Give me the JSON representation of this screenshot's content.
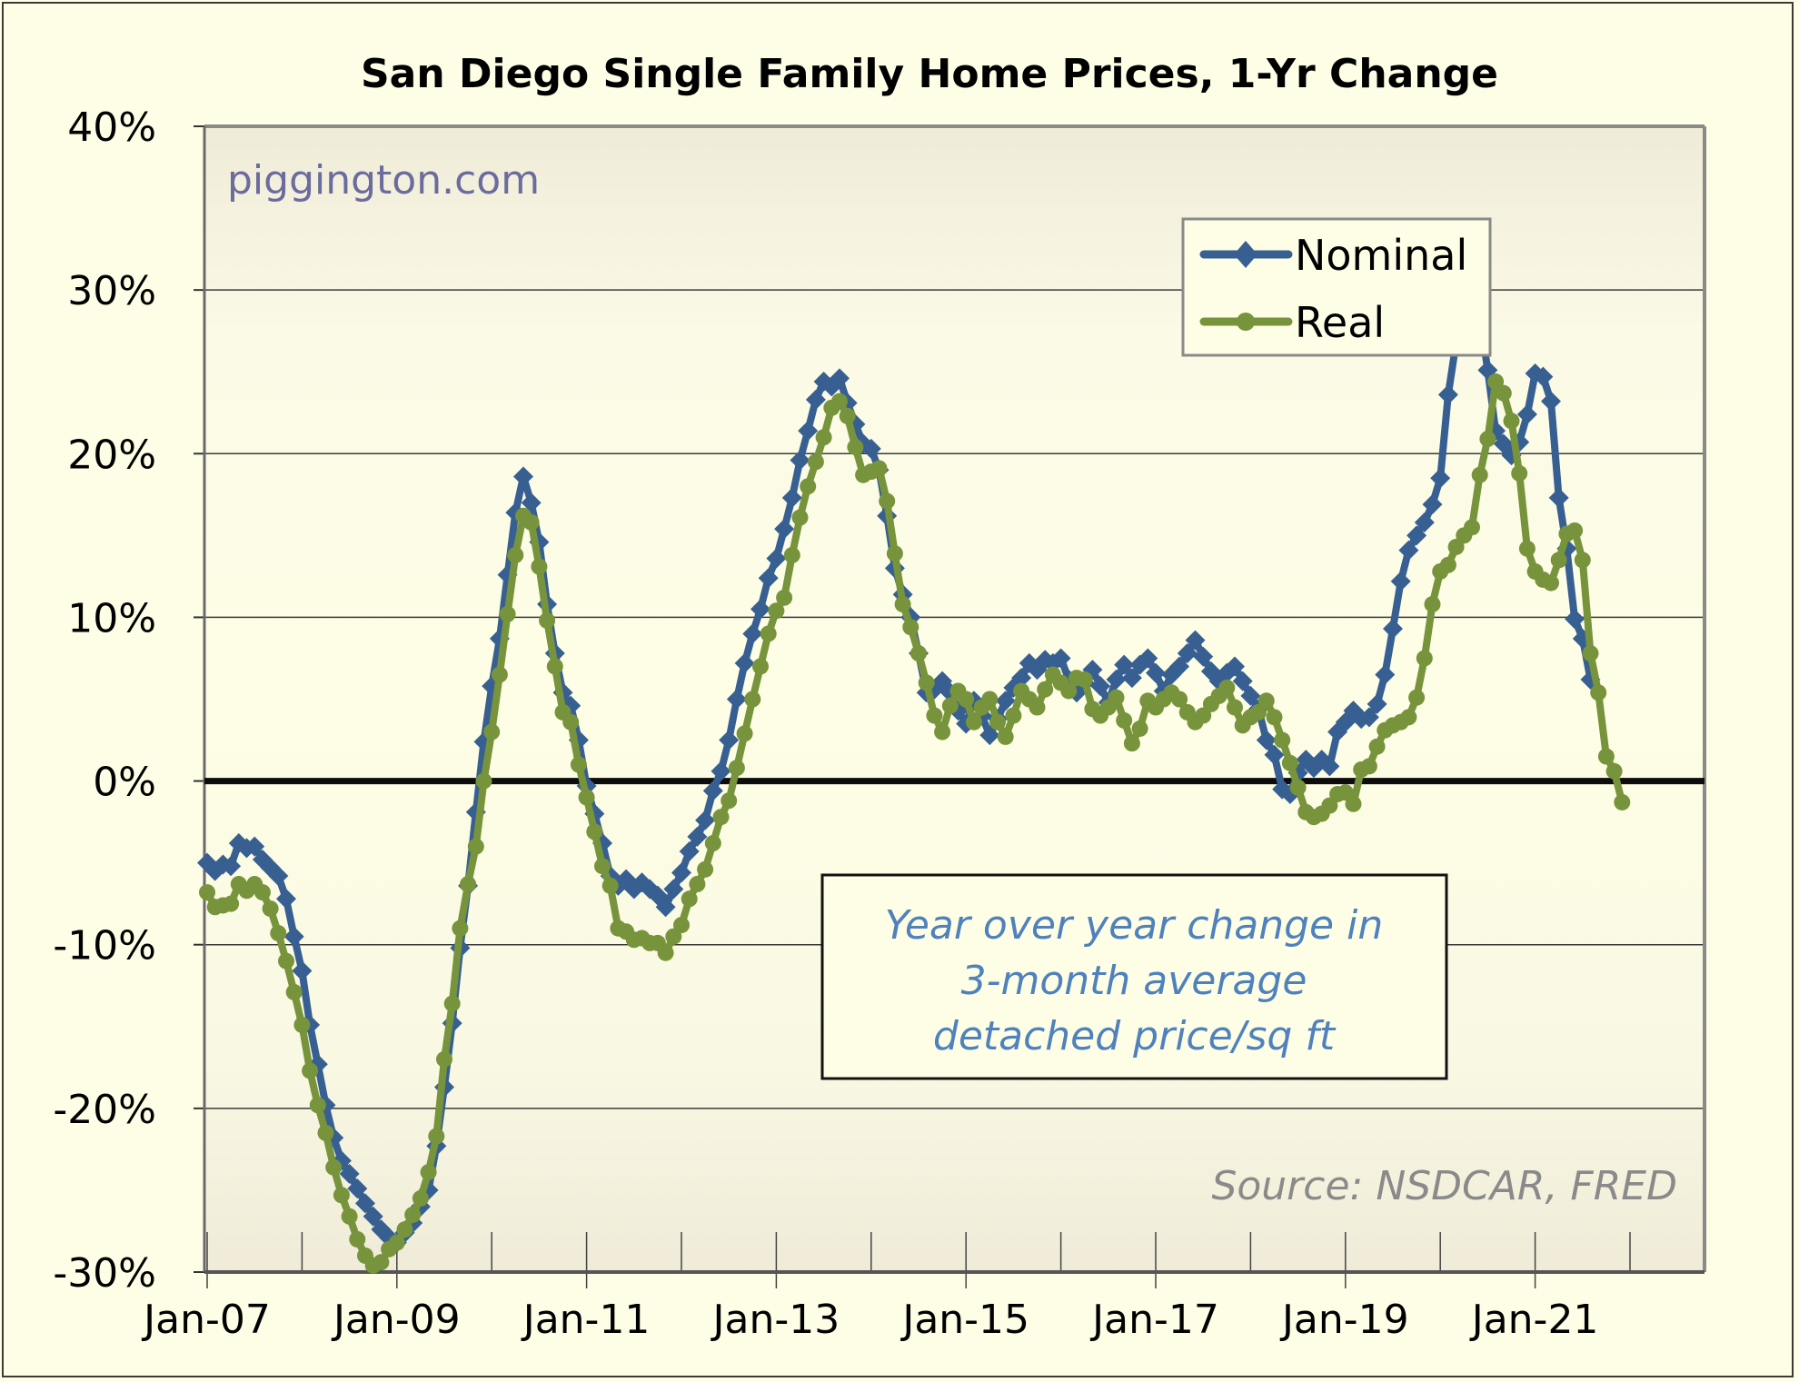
{
  "chart_data": {
    "type": "line",
    "title": "San Diego Single Family Home Prices, 1-Yr Change",
    "xlabel": "",
    "ylabel": "",
    "ylim": [
      -30,
      40
    ],
    "yticks": [
      -30,
      -20,
      -10,
      0,
      10,
      20,
      30,
      40
    ],
    "ytick_labels": [
      "-30%",
      "-20%",
      "-10%",
      "0%",
      "10%",
      "20%",
      "30%",
      "40%"
    ],
    "x_start": "Jan-07",
    "x_frequency": "monthly",
    "x_count": 190,
    "xtick_labels": [
      "Jan-07",
      "Jan-09",
      "Jan-11",
      "Jan-13",
      "Jan-15",
      "Jan-17",
      "Jan-19",
      "Jan-21"
    ],
    "xtick_month_index": [
      0,
      24,
      48,
      72,
      96,
      120,
      144,
      168
    ],
    "grid": "horizontal",
    "zero_line": true,
    "legend_position": "top-right",
    "series": [
      {
        "name": "Nominal",
        "color": "#375f91",
        "marker": "diamond",
        "values": [
          -5.0,
          -5.5,
          -5.1,
          -5.2,
          -3.8,
          -4.1,
          -4.0,
          -4.8,
          -5.3,
          -5.8,
          -7.2,
          -9.5,
          -11.6,
          -14.9,
          -17.3,
          -19.8,
          -21.8,
          -23.2,
          -24.0,
          -24.9,
          -25.8,
          -26.6,
          -27.4,
          -27.9,
          -28.2,
          -27.6,
          -27.0,
          -26.0,
          -25.0,
          -22.3,
          -18.7,
          -14.8,
          -10.2,
          -6.4,
          -1.9,
          2.4,
          5.8,
          8.7,
          12.6,
          16.4,
          18.6,
          17.0,
          14.6,
          10.8,
          7.8,
          5.4,
          4.6,
          2.5,
          -0.3,
          -2.0,
          -3.8,
          -5.8,
          -6.4,
          -6.0,
          -6.6,
          -6.2,
          -6.6,
          -7.0,
          -7.7,
          -6.6,
          -5.6,
          -4.3,
          -3.4,
          -2.4,
          -0.6,
          0.6,
          2.5,
          5.0,
          7.2,
          9.0,
          10.5,
          12.4,
          13.6,
          15.4,
          17.3,
          19.6,
          21.4,
          23.3,
          24.4,
          24.1,
          24.6,
          23.1,
          21.8,
          20.6,
          20.3,
          19.0,
          16.2,
          13.0,
          11.4,
          10.0,
          7.8,
          5.4,
          5.6,
          6.1,
          5.4,
          4.3,
          3.5,
          4.9,
          4.0,
          2.8,
          3.8,
          4.9,
          5.7,
          6.3,
          7.2,
          6.8,
          7.4,
          7.2,
          7.5,
          6.2,
          5.4,
          6.0,
          6.8,
          5.8,
          4.8,
          6.2,
          7.1,
          6.3,
          7.1,
          7.5,
          6.6,
          5.5,
          6.5,
          7.0,
          7.8,
          8.6,
          7.6,
          6.7,
          6.1,
          6.6,
          7.0,
          6.1,
          5.2,
          4.4,
          2.5,
          1.6,
          -0.5,
          -0.8,
          0.5,
          1.3,
          0.8,
          1.3,
          0.9,
          3.0,
          3.6,
          4.3,
          3.8,
          3.9,
          4.7,
          6.5,
          9.3,
          12.2,
          14.1,
          15.0,
          15.8,
          16.9,
          18.5,
          23.6,
          26.8,
          30.9,
          30.2,
          28.4,
          25.1,
          21.4,
          20.6,
          19.9,
          20.7,
          22.4,
          24.9,
          24.7,
          23.2,
          17.3,
          14.2,
          9.9,
          8.7,
          6.2
        ]
      },
      {
        "name": "Real",
        "color": "#77933c",
        "marker": "circle",
        "values": [
          -6.8,
          -7.7,
          -7.6,
          -7.5,
          -6.3,
          -6.7,
          -6.3,
          -6.8,
          -7.8,
          -9.3,
          -11.0,
          -12.9,
          -14.9,
          -17.7,
          -19.8,
          -21.5,
          -23.6,
          -25.3,
          -26.6,
          -28.0,
          -29.0,
          -29.6,
          -29.4,
          -28.6,
          -28.2,
          -27.4,
          -26.5,
          -25.5,
          -23.9,
          -21.7,
          -17.0,
          -13.6,
          -9.0,
          -6.3,
          -4.0,
          0.0,
          3.0,
          6.5,
          10.2,
          13.8,
          16.2,
          15.8,
          13.1,
          9.8,
          7.0,
          4.2,
          3.6,
          1.0,
          -1.0,
          -3.1,
          -5.2,
          -6.4,
          -9.0,
          -9.2,
          -9.7,
          -9.6,
          -9.9,
          -9.9,
          -10.5,
          -9.5,
          -8.8,
          -7.2,
          -6.3,
          -5.4,
          -3.8,
          -2.2,
          -1.2,
          0.8,
          2.9,
          5.0,
          7.0,
          9.0,
          10.4,
          11.2,
          13.8,
          16.1,
          18.0,
          19.5,
          21.0,
          22.8,
          23.2,
          22.3,
          20.4,
          18.7,
          18.9,
          19.1,
          17.1,
          13.9,
          10.8,
          9.4,
          7.8,
          6.0,
          4.0,
          3.0,
          4.6,
          5.5,
          5.0,
          3.6,
          4.5,
          5.0,
          3.6,
          2.7,
          4.0,
          5.5,
          5.0,
          4.5,
          5.6,
          6.5,
          6.0,
          5.5,
          6.3,
          6.2,
          4.4,
          4.0,
          4.5,
          5.1,
          3.7,
          2.3,
          3.2,
          4.9,
          4.5,
          5.0,
          5.4,
          5.0,
          4.2,
          3.6,
          4.0,
          4.7,
          5.2,
          5.7,
          4.5,
          3.4,
          3.9,
          4.2,
          4.9,
          3.9,
          2.5,
          1.1,
          -0.4,
          -1.9,
          -2.2,
          -2.0,
          -1.5,
          -0.8,
          -0.7,
          -1.4,
          0.7,
          0.9,
          2.1,
          3.1,
          3.4,
          3.6,
          3.9,
          5.1,
          7.5,
          10.8,
          12.8,
          13.2,
          14.3,
          15.0,
          15.5,
          18.7,
          20.9,
          24.4,
          23.7,
          22.0,
          18.8,
          14.2,
          12.8,
          12.3,
          12.1,
          13.5,
          15.1,
          15.3,
          13.5,
          7.8,
          5.4,
          1.5,
          0.6,
          -1.3
        ]
      }
    ],
    "annotations": {
      "watermark": "piggington.com",
      "note_lines": [
        "Year over year change in",
        "3-month average",
        "detached price/sq ft"
      ],
      "source": "Source: NSDCAR, FRED"
    }
  }
}
